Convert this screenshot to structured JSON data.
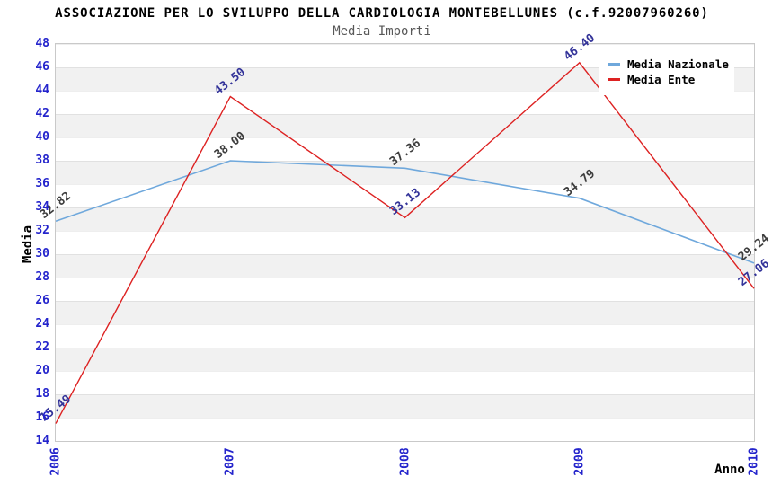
{
  "chart_data": {
    "type": "line",
    "title": "ASSOCIAZIONE PER LO SVILUPPO DELLA CARDIOLOGIA MONTEBELLUNES (c.f.92007960260)",
    "subtitle": "Media Importi",
    "x": [
      "2006",
      "2007",
      "2008",
      "2009",
      "2010"
    ],
    "xlabel": "Anno",
    "ylabel": "Media",
    "ylim": [
      14,
      48
    ],
    "ytick_step": 2,
    "grid": "horizontal-bands-alternating",
    "legend_position": "top-right-inside",
    "series": [
      {
        "name": "Media Nazionale",
        "color": "#6fa8dc",
        "label_color": "#3d3d3d",
        "values": [
          32.82,
          38.0,
          37.36,
          34.79,
          29.24
        ]
      },
      {
        "name": "Media Ente",
        "color": "#dd2222",
        "label_color": "#333399",
        "values": [
          15.49,
          43.5,
          33.13,
          46.4,
          27.06
        ]
      }
    ]
  },
  "colors": {
    "axis_tick_labels": "#2424cc",
    "band_fill": "#f1f1f1",
    "plot_border": "#c9c9c9",
    "subtitle_text": "#585858"
  }
}
